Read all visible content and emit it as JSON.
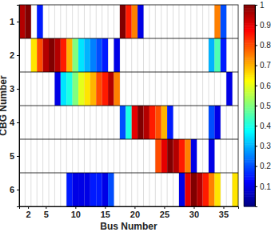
{
  "chart_data": {
    "type": "heatmap",
    "x_label": "Bus Number",
    "y_label": "CBG Number",
    "x": [
      1,
      2,
      3,
      4,
      5,
      6,
      7,
      8,
      9,
      10,
      11,
      12,
      13,
      14,
      15,
      16,
      17,
      18,
      19,
      20,
      21,
      22,
      23,
      24,
      25,
      26,
      27,
      28,
      29,
      30,
      31,
      32,
      33,
      34,
      35,
      36,
      37
    ],
    "y": [
      1,
      2,
      3,
      4,
      5,
      6
    ],
    "xlim": [
      0.5,
      37.5
    ],
    "ylim": [
      0.5,
      6.5
    ],
    "xticks": [
      2,
      5,
      10,
      15,
      20,
      25,
      30,
      35
    ],
    "yticks": [
      1,
      2,
      3,
      4,
      5,
      6
    ],
    "values": [
      [
        0.95,
        1,
        null,
        0.15,
        null,
        null,
        null,
        null,
        null,
        null,
        null,
        null,
        null,
        null,
        null,
        null,
        null,
        1,
        0.85,
        0.75,
        0.1,
        null,
        null,
        null,
        null,
        null,
        null,
        null,
        null,
        null,
        null,
        null,
        null,
        0.75,
        0.2,
        null,
        null
      ],
      [
        null,
        null,
        0.65,
        0.8,
        0.95,
        1,
        0.95,
        0.85,
        0.7,
        0.5,
        0.35,
        0.3,
        0.25,
        0.2,
        0.15,
        null,
        0.1,
        null,
        null,
        null,
        null,
        null,
        null,
        null,
        null,
        null,
        null,
        null,
        null,
        null,
        null,
        null,
        0.3,
        0.45,
        0.15,
        null,
        null
      ],
      [
        null,
        null,
        null,
        null,
        null,
        null,
        0.1,
        0.35,
        0.4,
        0.5,
        0.6,
        0.65,
        0.7,
        0.8,
        0.85,
        0.95,
        0.75,
        null,
        null,
        null,
        null,
        null,
        null,
        null,
        null,
        null,
        null,
        null,
        null,
        null,
        null,
        null,
        null,
        null,
        null,
        0.1,
        null
      ],
      [
        null,
        null,
        null,
        null,
        null,
        null,
        null,
        null,
        null,
        null,
        null,
        null,
        null,
        null,
        null,
        null,
        null,
        0.2,
        0.4,
        0.9,
        1,
        0.95,
        0.85,
        0.8,
        0.7,
        0.15,
        null,
        null,
        null,
        null,
        null,
        null,
        0.2,
        0.1,
        null,
        null,
        null
      ],
      [
        null,
        null,
        null,
        null,
        null,
        null,
        null,
        null,
        null,
        null,
        null,
        null,
        null,
        null,
        null,
        null,
        null,
        null,
        null,
        null,
        null,
        null,
        null,
        0.8,
        0.9,
        1,
        0.95,
        0.85,
        0.75,
        0.1,
        null,
        null,
        0.1,
        null,
        null,
        null,
        null
      ],
      [
        null,
        null,
        null,
        null,
        null,
        null,
        null,
        null,
        0.15,
        0.1,
        0.1,
        0.1,
        0.15,
        0.15,
        0.1,
        0.2,
        null,
        null,
        null,
        null,
        null,
        null,
        null,
        null,
        null,
        null,
        null,
        0.1,
        0.9,
        1,
        0.95,
        0.85,
        0.75,
        0.65,
        null,
        null,
        0.65
      ]
    ],
    "colorbar": {
      "range": [
        0,
        1
      ],
      "ticks": [
        0.1,
        0.2,
        0.3,
        0.4,
        0.5,
        0.6,
        0.7,
        0.8,
        0.9,
        1
      ]
    }
  }
}
